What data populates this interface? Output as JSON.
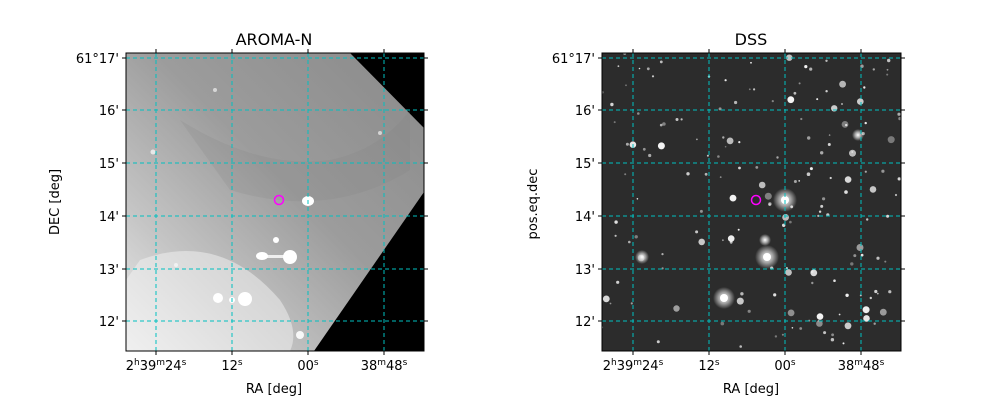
{
  "chart_data": [
    {
      "type": "image",
      "title": "AROMA-N",
      "xlabel": "RA [deg]",
      "ylabel": "DEC [deg]",
      "x_ticks": [
        {
          "ra_sec": 84,
          "h": "2",
          "hs": "h",
          "m": "39",
          "ms": "m",
          "s": "24",
          "ss": "s"
        },
        {
          "ra_sec": 72,
          "s": "12",
          "ss": "s"
        },
        {
          "ra_sec": 60,
          "s": "00",
          "ss": "s"
        },
        {
          "ra_sec": 48,
          "m": "38",
          "ms": "m",
          "s": "48",
          "ss": "s"
        }
      ],
      "y_ticks": [
        {
          "dec_arcmin": 17,
          "label": "61°17'"
        },
        {
          "dec_arcmin": 16,
          "label": "16'"
        },
        {
          "dec_arcmin": 15,
          "label": "15'"
        },
        {
          "dec_arcmin": 14,
          "label": "14'"
        },
        {
          "dec_arcmin": 13,
          "label": "13'"
        },
        {
          "dec_arcmin": 12,
          "label": "12'"
        }
      ],
      "grid": true,
      "grid_color": "#00c0c0",
      "marker": {
        "ra_sec": 65.5,
        "dec_arcmin": 14.3,
        "color": "#ff00ff"
      }
    },
    {
      "type": "image",
      "title": "DSS",
      "xlabel": "RA [deg]",
      "ylabel": "pos.eq.dec",
      "x_ticks": [
        {
          "ra_sec": 84,
          "h": "2",
          "hs": "h",
          "m": "39",
          "ms": "m",
          "s": "24",
          "ss": "s"
        },
        {
          "ra_sec": 72,
          "s": "12",
          "ss": "s"
        },
        {
          "ra_sec": 60,
          "s": "00",
          "ss": "s"
        },
        {
          "ra_sec": 48,
          "m": "38",
          "ms": "m",
          "s": "48",
          "ss": "s"
        }
      ],
      "y_ticks": [
        {
          "dec_arcmin": 17,
          "label": "61°17'"
        },
        {
          "dec_arcmin": 16,
          "label": "16'"
        },
        {
          "dec_arcmin": 15,
          "label": "15'"
        },
        {
          "dec_arcmin": 14,
          "label": "14'"
        },
        {
          "dec_arcmin": 13,
          "label": "13'"
        },
        {
          "dec_arcmin": 12,
          "label": "12'"
        }
      ],
      "grid": true,
      "grid_color": "#00c0c0",
      "marker": {
        "ra_sec": 65.5,
        "dec_arcmin": 14.3,
        "color": "#ff00ff"
      }
    }
  ]
}
